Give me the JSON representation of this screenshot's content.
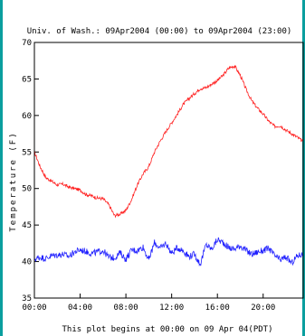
{
  "chart_data": {
    "type": "line",
    "title": "Univ. of Wash.:  09Apr2004 (00:00) to 09Apr2004 (23:00)",
    "ylabel": "Temperature  (F)",
    "footer": "This plot begins at 00:00 on 09 Apr 04(PDT)",
    "ylim": [
      35,
      70
    ],
    "xlim": [
      0,
      23.5
    ],
    "y_ticks": [
      35,
      40,
      45,
      50,
      55,
      60,
      65,
      70
    ],
    "x_ticks": [
      {
        "value": 0,
        "label": "00:00"
      },
      {
        "value": 4,
        "label": "04:00"
      },
      {
        "value": 8,
        "label": "08:00"
      },
      {
        "value": 12,
        "label": "12:00"
      },
      {
        "value": 16,
        "label": "16:00"
      },
      {
        "value": 20,
        "label": "20:00"
      }
    ],
    "series": [
      {
        "color": "#ff2020",
        "x": [
          0.0,
          0.5,
          1.0,
          1.5,
          2.0,
          2.5,
          3.0,
          3.5,
          4.0,
          4.5,
          5.0,
          5.5,
          6.0,
          6.5,
          7.0,
          7.5,
          8.0,
          8.5,
          9.0,
          9.5,
          10.0,
          10.5,
          11.0,
          11.5,
          12.0,
          12.5,
          13.0,
          13.5,
          14.0,
          14.5,
          15.0,
          15.5,
          16.0,
          16.5,
          17.0,
          17.5,
          18.0,
          18.5,
          19.0,
          19.5,
          20.0,
          20.5,
          21.0,
          21.5,
          22.0,
          22.5,
          23.0,
          23.5
        ],
        "y": [
          55.0,
          53.0,
          51.5,
          51.0,
          50.5,
          50.6,
          50.2,
          50.0,
          49.8,
          49.2,
          49.0,
          48.7,
          48.6,
          47.8,
          46.3,
          46.5,
          47.0,
          48.5,
          50.5,
          52.0,
          53.0,
          55.0,
          56.5,
          57.8,
          59.0,
          60.2,
          61.5,
          62.3,
          63.0,
          63.7,
          63.8,
          64.3,
          64.8,
          65.5,
          66.5,
          66.8,
          65.5,
          63.6,
          62.0,
          61.0,
          60.2,
          59.2,
          58.5,
          58.6,
          58.0,
          57.5,
          57.0,
          56.4
        ]
      },
      {
        "color": "#2020ff",
        "x": [
          0.0,
          0.5,
          1.0,
          1.5,
          2.0,
          2.5,
          3.0,
          3.5,
          4.0,
          4.5,
          5.0,
          5.5,
          6.0,
          6.5,
          7.0,
          7.5,
          8.0,
          8.5,
          9.0,
          9.5,
          10.0,
          10.5,
          11.0,
          11.5,
          12.0,
          12.5,
          13.0,
          13.5,
          14.0,
          14.5,
          15.0,
          15.5,
          16.0,
          16.5,
          17.0,
          17.5,
          18.0,
          18.5,
          19.0,
          19.5,
          20.0,
          20.5,
          21.0,
          21.5,
          22.0,
          22.5,
          23.0,
          23.5
        ],
        "y": [
          40.3,
          40.6,
          40.4,
          40.8,
          40.9,
          41.0,
          40.7,
          41.3,
          41.6,
          41.4,
          41.1,
          41.3,
          41.5,
          40.6,
          40.5,
          41.2,
          40.3,
          41.6,
          41.5,
          42.0,
          40.2,
          42.6,
          41.8,
          42.5,
          41.1,
          41.9,
          41.5,
          40.7,
          41.0,
          39.6,
          42.3,
          41.7,
          43.0,
          42.6,
          41.9,
          41.7,
          42.2,
          41.5,
          41.0,
          41.3,
          41.5,
          41.8,
          40.8,
          40.2,
          40.6,
          39.8,
          40.8,
          41.0
        ]
      }
    ]
  }
}
